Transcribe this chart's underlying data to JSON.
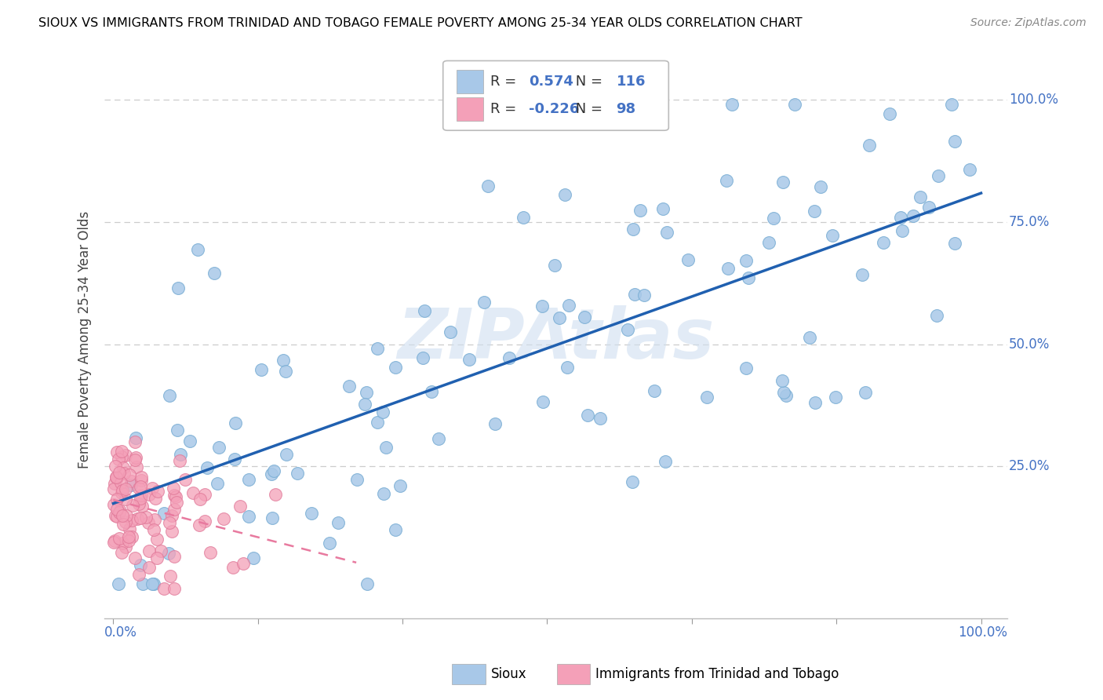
{
  "title": "SIOUX VS IMMIGRANTS FROM TRINIDAD AND TOBAGO FEMALE POVERTY AMONG 25-34 YEAR OLDS CORRELATION CHART",
  "source": "Source: ZipAtlas.com",
  "ylabel": "Female Poverty Among 25-34 Year Olds",
  "sioux_R": 0.574,
  "sioux_N": 116,
  "tt_R": -0.226,
  "tt_N": 98,
  "sioux_color": "#a8c8e8",
  "sioux_edge_color": "#7aaed4",
  "tt_color": "#f4a0b8",
  "tt_edge_color": "#e07898",
  "sioux_line_color": "#2060b0",
  "tt_line_color": "#e87a9f",
  "watermark_color": "#d0dff0",
  "grid_color": "#cccccc",
  "ytick_color": "#4472c4",
  "xlabel_color": "#4472c4"
}
